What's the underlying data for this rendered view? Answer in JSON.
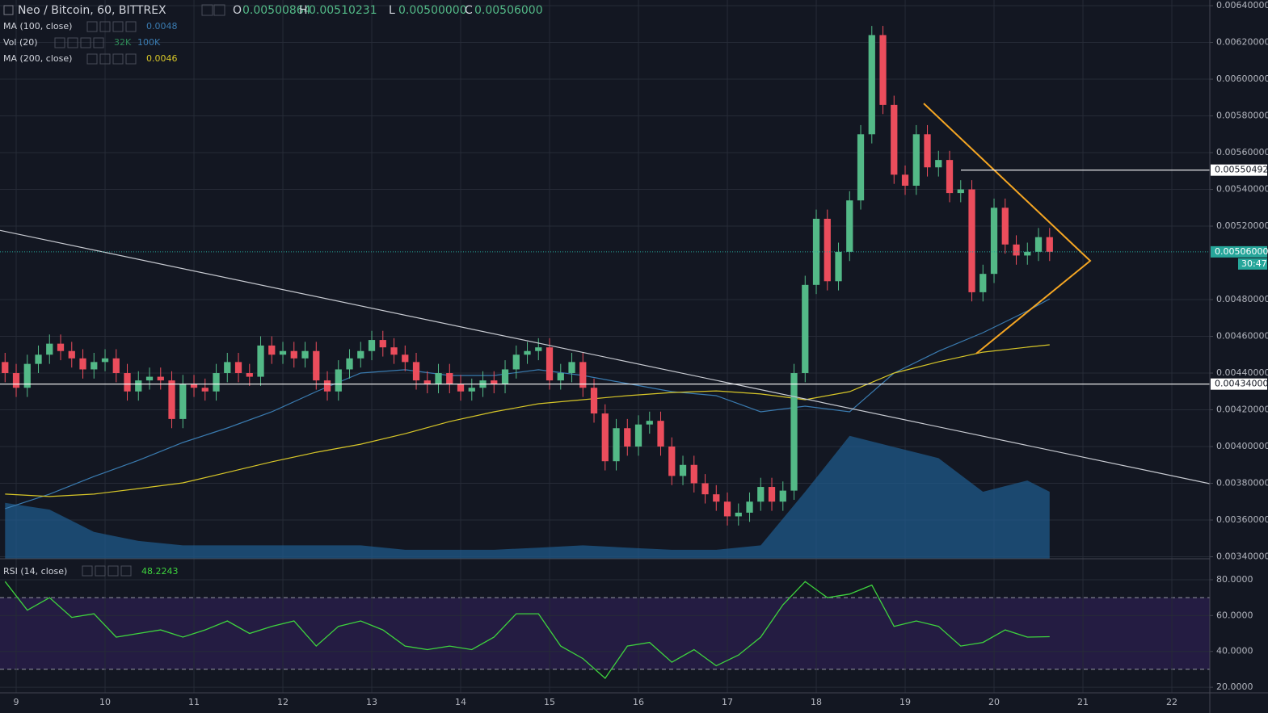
{
  "chart_data": [
    {
      "type": "candlestick",
      "title": "Neo / Bitcoin, 60, BITTREX",
      "ohlc_legend": [
        {
          "name": "O",
          "value": "0.00500864"
        },
        {
          "name": "H",
          "value": "0.00510231"
        },
        {
          "name": "L",
          "value": "0.00500000"
        },
        {
          "name": "C",
          "value": "0.00506000"
        }
      ],
      "up_color": "#53b987",
      "down_color": "#eb4d5c",
      "x": [
        8.875,
        9,
        9.125,
        9.25,
        9.375,
        9.5,
        9.625,
        9.75,
        9.875,
        10,
        10.125,
        10.25,
        10.375,
        10.5,
        10.625,
        10.75,
        10.875,
        11,
        11.125,
        11.25,
        11.375,
        11.5,
        11.625,
        11.75,
        11.875,
        12,
        12.125,
        12.25,
        12.375,
        12.5,
        12.625,
        12.75,
        12.875,
        13,
        13.125,
        13.25,
        13.375,
        13.5,
        13.625,
        13.75,
        13.875,
        14,
        14.125,
        14.25,
        14.375,
        14.5,
        14.625,
        14.75,
        14.875,
        15,
        15.125,
        15.25,
        15.375,
        15.5,
        15.625,
        15.75,
        15.875,
        16,
        16.125,
        16.25,
        16.375,
        16.5,
        16.625,
        16.75,
        16.875,
        17,
        17.125,
        17.25,
        17.375,
        17.5,
        17.625,
        17.75,
        17.875,
        18,
        18.125,
        18.25,
        18.375,
        18.5,
        18.625,
        18.75,
        18.875,
        19,
        19.125,
        19.25,
        19.375,
        19.5,
        19.625,
        19.75,
        19.875,
        20,
        20.125,
        20.25,
        20.375,
        20.5,
        20.625
      ],
      "open": [
        0.00446,
        0.0044,
        0.00432,
        0.00445,
        0.0045,
        0.00456,
        0.00452,
        0.00448,
        0.00442,
        0.00446,
        0.00448,
        0.0044,
        0.0043,
        0.00436,
        0.00438,
        0.00436,
        0.00415,
        0.00434,
        0.00432,
        0.0043,
        0.0044,
        0.00446,
        0.0044,
        0.00438,
        0.00455,
        0.0045,
        0.00452,
        0.00448,
        0.00452,
        0.00436,
        0.0043,
        0.00442,
        0.00448,
        0.00452,
        0.00458,
        0.00454,
        0.0045,
        0.00446,
        0.00436,
        0.00434,
        0.0044,
        0.00434,
        0.0043,
        0.00432,
        0.00436,
        0.00434,
        0.00442,
        0.0045,
        0.00452,
        0.00454,
        0.00436,
        0.0044,
        0.00446,
        0.00432,
        0.00418,
        0.00392,
        0.0041,
        0.004,
        0.00412,
        0.00414,
        0.004,
        0.00384,
        0.0039,
        0.0038,
        0.00374,
        0.0037,
        0.00362,
        0.00364,
        0.0037,
        0.00378,
        0.0037,
        0.00376,
        0.0044,
        0.00488,
        0.00524,
        0.0049,
        0.00506,
        0.00534,
        0.0057,
        0.00624,
        0.00586,
        0.00548,
        0.00542,
        0.0057,
        0.00552,
        0.00556,
        0.00538,
        0.0054,
        0.00484,
        0.00494,
        0.0053,
        0.0051,
        0.00504,
        0.00506,
        0.00514
      ],
      "high": [
        0.00451,
        0.00445,
        0.0045,
        0.00455,
        0.00461,
        0.00461,
        0.00457,
        0.00453,
        0.00451,
        0.00453,
        0.00453,
        0.00445,
        0.00441,
        0.00443,
        0.00443,
        0.00441,
        0.00439,
        0.00439,
        0.00437,
        0.00445,
        0.00451,
        0.00451,
        0.00445,
        0.0046,
        0.0046,
        0.00457,
        0.00457,
        0.00457,
        0.00457,
        0.00441,
        0.00447,
        0.00453,
        0.00457,
        0.00463,
        0.00463,
        0.00459,
        0.00455,
        0.00451,
        0.00441,
        0.00445,
        0.00445,
        0.00439,
        0.00437,
        0.00441,
        0.00441,
        0.00447,
        0.00455,
        0.00457,
        0.00459,
        0.00459,
        0.00445,
        0.00451,
        0.00451,
        0.00437,
        0.00423,
        0.00415,
        0.00415,
        0.00417,
        0.00419,
        0.00419,
        0.00405,
        0.00395,
        0.00395,
        0.00385,
        0.00379,
        0.00375,
        0.00369,
        0.00375,
        0.00383,
        0.00383,
        0.00381,
        0.00445,
        0.00493,
        0.00529,
        0.00529,
        0.00511,
        0.00539,
        0.00575,
        0.00629,
        0.00629,
        0.00591,
        0.00553,
        0.00575,
        0.00575,
        0.00561,
        0.00561,
        0.00545,
        0.00545,
        0.00499,
        0.00535,
        0.00535,
        0.00515,
        0.00511,
        0.00519,
        0.00519
      ],
      "low": [
        0.00435,
        0.00427,
        0.00427,
        0.0044,
        0.00445,
        0.00447,
        0.00443,
        0.00437,
        0.00437,
        0.00441,
        0.00435,
        0.00425,
        0.00425,
        0.00431,
        0.00431,
        0.0041,
        0.0041,
        0.00427,
        0.00425,
        0.00425,
        0.00435,
        0.00435,
        0.00433,
        0.00433,
        0.00445,
        0.00445,
        0.00443,
        0.00443,
        0.00431,
        0.00425,
        0.00425,
        0.00437,
        0.00443,
        0.00447,
        0.00449,
        0.00445,
        0.00441,
        0.00431,
        0.00429,
        0.00429,
        0.00429,
        0.00425,
        0.00425,
        0.00427,
        0.00429,
        0.00429,
        0.00437,
        0.00445,
        0.00447,
        0.00431,
        0.00431,
        0.00435,
        0.00427,
        0.00413,
        0.00387,
        0.00387,
        0.00395,
        0.00395,
        0.00407,
        0.00395,
        0.00379,
        0.00379,
        0.00375,
        0.00369,
        0.00365,
        0.00357,
        0.00357,
        0.00359,
        0.00365,
        0.00365,
        0.00365,
        0.00371,
        0.00435,
        0.00483,
        0.00485,
        0.00485,
        0.00501,
        0.00529,
        0.00565,
        0.00581,
        0.00543,
        0.00537,
        0.00537,
        0.00547,
        0.00547,
        0.00533,
        0.00533,
        0.00479,
        0.00479,
        0.00489,
        0.00505,
        0.00499,
        0.00499,
        0.00501,
        0.00501
      ],
      "close": [
        0.0044,
        0.00432,
        0.00445,
        0.0045,
        0.00456,
        0.00452,
        0.00448,
        0.00442,
        0.00446,
        0.00448,
        0.0044,
        0.0043,
        0.00436,
        0.00438,
        0.00436,
        0.00415,
        0.00434,
        0.00432,
        0.0043,
        0.0044,
        0.00446,
        0.0044,
        0.00438,
        0.00455,
        0.0045,
        0.00452,
        0.00448,
        0.00452,
        0.00436,
        0.0043,
        0.00442,
        0.00448,
        0.00452,
        0.00458,
        0.00454,
        0.0045,
        0.00446,
        0.00436,
        0.00434,
        0.0044,
        0.00434,
        0.0043,
        0.00432,
        0.00436,
        0.00434,
        0.00442,
        0.0045,
        0.00452,
        0.00454,
        0.00436,
        0.0044,
        0.00446,
        0.00432,
        0.00418,
        0.00392,
        0.0041,
        0.004,
        0.00412,
        0.00414,
        0.004,
        0.00384,
        0.0039,
        0.0038,
        0.00374,
        0.0037,
        0.00362,
        0.00364,
        0.0037,
        0.00378,
        0.0037,
        0.00376,
        0.0044,
        0.00488,
        0.00524,
        0.0049,
        0.00506,
        0.00534,
        0.0057,
        0.00624,
        0.00586,
        0.00548,
        0.00542,
        0.0057,
        0.00552,
        0.00556,
        0.00538,
        0.0054,
        0.00484,
        0.00494,
        0.0053,
        0.0051,
        0.00504,
        0.00506,
        0.00514,
        0.00506
      ],
      "xlim": [
        8.818,
        22.427
      ],
      "xticks": [
        9,
        10,
        11,
        12,
        13,
        14,
        15,
        16,
        17,
        18,
        19,
        20,
        21,
        22
      ],
      "ylim": [
        0.003389,
        0.006431
      ],
      "yticks": [
        {
          "value": 0.0064,
          "label": "0.00640000"
        },
        {
          "value": 0.0062,
          "label": "0.00620000"
        },
        {
          "value": 0.006,
          "label": "0.00600000"
        },
        {
          "value": 0.0058,
          "label": "0.00580000"
        },
        {
          "value": 0.0056,
          "label": "0.00560000"
        },
        {
          "value": 0.0054,
          "label": "0.00540000"
        },
        {
          "value": 0.0052,
          "label": "0.00520000"
        },
        {
          "value": 0.0048,
          "label": "0.00480000"
        },
        {
          "value": 0.0046,
          "label": "0.00460000"
        },
        {
          "value": 0.0044,
          "label": "0.00440000"
        },
        {
          "value": 0.0042,
          "label": "0.00420000"
        },
        {
          "value": 0.004,
          "label": "0.00400000"
        },
        {
          "value": 0.0038,
          "label": "0.00380000"
        },
        {
          "value": 0.0036,
          "label": "0.00360000"
        },
        {
          "value": 0.0034,
          "label": "0.00340000"
        }
      ],
      "grid": true,
      "series": [
        {
          "name": "MA (100, close)",
          "type": "line",
          "color": "#3a7bb0",
          "legend_values": [
            "0.0048"
          ],
          "x": [
            8.875,
            9.375,
            9.875,
            10.375,
            10.875,
            11.375,
            11.875,
            12.375,
            12.875,
            13.375,
            13.875,
            14.375,
            14.875,
            15.375,
            15.875,
            16.375,
            16.875,
            17.375,
            17.875,
            18.375,
            18.875,
            19.375,
            19.875,
            20.375,
            20.625
          ],
          "values": [
            0.003662,
            0.003741,
            0.003837,
            0.003925,
            0.004022,
            0.004101,
            0.004189,
            0.004299,
            0.0044,
            0.004418,
            0.004387,
            0.004387,
            0.004418,
            0.004387,
            0.004343,
            0.004299,
            0.004277,
            0.004189,
            0.00422,
            0.004189,
            0.0044,
            0.004519,
            0.00462,
            0.004738,
            0.004804
          ]
        },
        {
          "name": "Vol (20)",
          "type": "area",
          "color": "#1f5a8a",
          "legend_values": [
            "32K",
            "100K"
          ],
          "legend_colors": [
            "#2e8b57",
            "#3a7bb0"
          ],
          "vlim": [
            0,
            250
          ],
          "x": [
            8.875,
            9.375,
            9.875,
            10.375,
            10.875,
            11.375,
            11.875,
            12.375,
            12.875,
            13.375,
            13.875,
            14.375,
            14.875,
            15.375,
            15.875,
            16.375,
            16.875,
            17.375,
            17.875,
            18.375,
            18.875,
            19.375,
            19.875,
            20.375,
            20.625
          ],
          "values": [
            25,
            22,
            12,
            8,
            6,
            6,
            6,
            6,
            6,
            4,
            4,
            4,
            5,
            6,
            5,
            4,
            4,
            6,
            30,
            55,
            50,
            45,
            30,
            35,
            30
          ]
        },
        {
          "name": "MA (200, close)",
          "type": "line",
          "color": "#d7c628",
          "legend_values": [
            "0.0046"
          ],
          "x": [
            8.875,
            9.375,
            9.875,
            10.375,
            10.875,
            11.375,
            11.875,
            12.375,
            12.875,
            13.375,
            13.875,
            14.375,
            14.875,
            15.375,
            15.875,
            16.375,
            16.875,
            17.375,
            17.875,
            18.375,
            18.875,
            19.375,
            19.875,
            20.375,
            20.625
          ],
          "values": [
            0.003741,
            0.003728,
            0.003741,
            0.003771,
            0.003802,
            0.003859,
            0.003917,
            0.003969,
            0.004013,
            0.00407,
            0.004136,
            0.004189,
            0.004233,
            0.004255,
            0.004277,
            0.004294,
            0.004303,
            0.004286,
            0.004255,
            0.004299,
            0.0044,
            0.004461,
            0.004514,
            0.004541,
            0.004554
          ]
        }
      ],
      "price_lines": [
        {
          "value": 0.00550492,
          "label": "0.00550492",
          "x_start": 19.627,
          "color": "#ffffff",
          "text_color": "#131722"
        },
        {
          "value": 0.00434,
          "label": "0.00434000",
          "color": "#ffffff",
          "text_color": "#131722"
        },
        {
          "value": 0.00506,
          "label": "0.00506000",
          "color": "#26a69a",
          "text_color": "#ffffff",
          "dotted": true,
          "countdown": "30:47"
        }
      ],
      "trend_lines": [
        {
          "color": "#c8cbd2",
          "x": [
            8.818,
            22.427
          ],
          "y": [
            0.005177,
            0.003798
          ]
        },
        {
          "color": "#f5a623",
          "x": [
            19.209,
            21.082,
            19.8
          ],
          "y": [
            0.005868,
            0.005011,
            0.004506
          ]
        }
      ]
    },
    {
      "type": "line",
      "title": "RSI (14, close)",
      "value_label": "48.2243",
      "color": "#3ed33e",
      "x": [
        8.875,
        9.125,
        9.375,
        9.625,
        9.875,
        10.125,
        10.375,
        10.625,
        10.875,
        11.125,
        11.375,
        11.625,
        11.875,
        12.125,
        12.375,
        12.625,
        12.875,
        13.125,
        13.375,
        13.625,
        13.875,
        14.125,
        14.375,
        14.625,
        14.875,
        15.125,
        15.375,
        15.625,
        15.875,
        16.125,
        16.375,
        16.625,
        16.875,
        17.125,
        17.375,
        17.625,
        17.875,
        18.125,
        18.375,
        18.625,
        18.875,
        19.125,
        19.375,
        19.625,
        19.875,
        20.125,
        20.375,
        20.625
      ],
      "values": [
        79,
        63,
        70,
        59,
        61,
        48,
        50,
        52,
        48,
        52,
        57,
        50,
        54,
        57,
        43,
        54,
        57,
        52,
        43,
        41,
        43,
        41,
        48,
        61,
        61,
        43,
        36,
        25,
        43,
        45,
        34,
        41,
        32,
        38,
        48,
        66,
        79,
        70,
        72,
        77,
        54,
        57,
        54,
        43,
        45,
        52,
        48,
        48.2243
      ],
      "band": [
        30,
        70
      ],
      "band_color": "#241c42",
      "xlim": [
        8.818,
        22.427
      ],
      "xticks": [
        9,
        10,
        11,
        12,
        13,
        14,
        15,
        16,
        17,
        18,
        19,
        20,
        21,
        22
      ],
      "ylim": [
        16.9,
        91.7
      ],
      "yticks": [
        {
          "value": 80,
          "label": "80.0000"
        },
        {
          "value": 60,
          "label": "60.0000"
        },
        {
          "value": 40,
          "label": "40.0000"
        },
        {
          "value": 20,
          "label": "20.0000"
        }
      ],
      "grid": true
    }
  ]
}
